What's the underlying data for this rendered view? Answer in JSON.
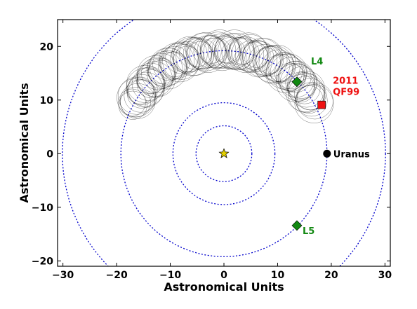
{
  "chart_data": {
    "type": "scatter",
    "title": "",
    "xlabel": "Astronomical Units",
    "ylabel": "Astronomical Units",
    "xlim": [
      -31,
      31
    ],
    "ylim": [
      -21,
      25
    ],
    "xticks": [
      -30,
      -20,
      -10,
      0,
      10,
      20,
      30
    ],
    "yticks": [
      -20,
      -10,
      0,
      10,
      20
    ],
    "grid": false,
    "orbits": [
      {
        "name": "Jupiter orbit",
        "radius": 5.2,
        "color": "#0000cc"
      },
      {
        "name": "Saturn orbit",
        "radius": 9.5,
        "color": "#0000cc"
      },
      {
        "name": "Uranus orbit",
        "radius": 19.2,
        "color": "#0000cc"
      },
      {
        "name": "Neptune orbit",
        "radius": 30.1,
        "color": "#0000cc"
      }
    ],
    "bodies": [
      {
        "label": "",
        "name": "Sun",
        "x": 0,
        "y": 0,
        "marker": "star",
        "color": "#e6d200"
      },
      {
        "label": "Uranus",
        "x": 19.2,
        "y": 0,
        "marker": "circle",
        "color": "#000000",
        "label_color": "#000000"
      },
      {
        "label": "L4",
        "x": 13.6,
        "y": 13.4,
        "marker": "diamond",
        "color": "#118811",
        "label_color": "#118811"
      },
      {
        "label": "L5",
        "x": 13.6,
        "y": -13.4,
        "marker": "diamond",
        "color": "#118811",
        "label_color": "#118811"
      },
      {
        "label": "2011\nQF99",
        "x": 18.2,
        "y": 9.1,
        "marker": "square",
        "color": "#ee1111",
        "label_color": "#ee1111"
      }
    ],
    "trajectory": {
      "description_color": "#000000",
      "mean_radius": 19.2,
      "epicycle_radius": 3.6,
      "angle_start_deg": 29,
      "angle_end_deg": 152
    }
  }
}
